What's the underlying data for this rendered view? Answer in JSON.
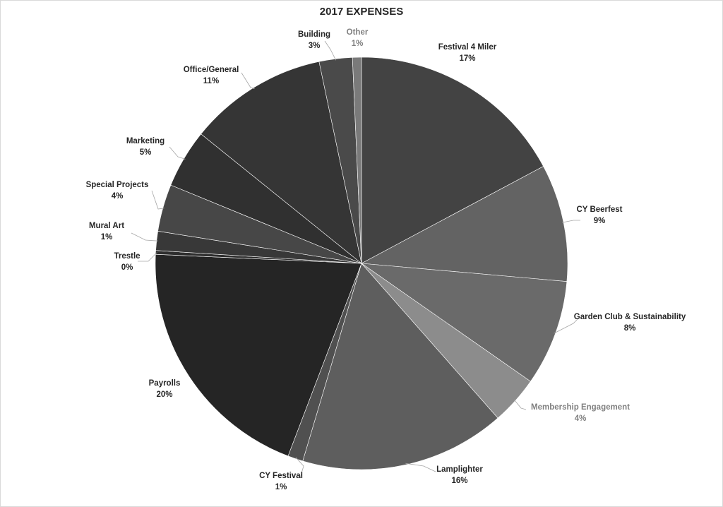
{
  "chart_data": {
    "type": "pie",
    "title": "2017 EXPENSES",
    "start_angle_deg": 0,
    "direction": "clockwise",
    "slices": [
      {
        "name": "Festival 4 Miler",
        "pct": "17%",
        "value": 17.2,
        "color": "#434343",
        "label_color": "#262626"
      },
      {
        "name": "CY Beerfest",
        "pct": "9%",
        "value": 9.2,
        "color": "#636363",
        "label_color": "#262626"
      },
      {
        "name": "Garden Club & Sustainability",
        "pct": "8%",
        "value": 8.3,
        "color": "#6a6a6a",
        "label_color": "#262626"
      },
      {
        "name": "Membership Engagement",
        "pct": "4%",
        "value": 3.8,
        "color": "#8c8c8c",
        "label_color": "#808080"
      },
      {
        "name": "Lamplighter",
        "pct": "16%",
        "value": 16.1,
        "color": "#5e5e5e",
        "label_color": "#262626"
      },
      {
        "name": "CY Festival",
        "pct": "1%",
        "value": 1.2,
        "color": "#505050",
        "label_color": "#262626"
      },
      {
        "name": "Payrolls",
        "pct": "20%",
        "value": 19.9,
        "color": "#252525",
        "label_color": "#262626"
      },
      {
        "name": "Trestle",
        "pct": "0%",
        "value": 0.3,
        "color": "#2e2e2e",
        "label_color": "#262626"
      },
      {
        "name": "Mural Art",
        "pct": "1%",
        "value": 1.5,
        "color": "#383838",
        "label_color": "#262626"
      },
      {
        "name": "Special Projects",
        "pct": "4%",
        "value": 3.7,
        "color": "#474747",
        "label_color": "#262626"
      },
      {
        "name": "Marketing",
        "pct": "5%",
        "value": 4.6,
        "color": "#303030",
        "label_color": "#262626"
      },
      {
        "name": "Office/General",
        "pct": "11%",
        "value": 10.9,
        "color": "#353535",
        "label_color": "#262626"
      },
      {
        "name": "Building",
        "pct": "3%",
        "value": 2.6,
        "color": "#4a4a4a",
        "label_color": "#262626"
      },
      {
        "name": "Other",
        "pct": "1%",
        "value": 0.7,
        "color": "#7a7a7a",
        "label_color": "#808080"
      }
    ]
  }
}
